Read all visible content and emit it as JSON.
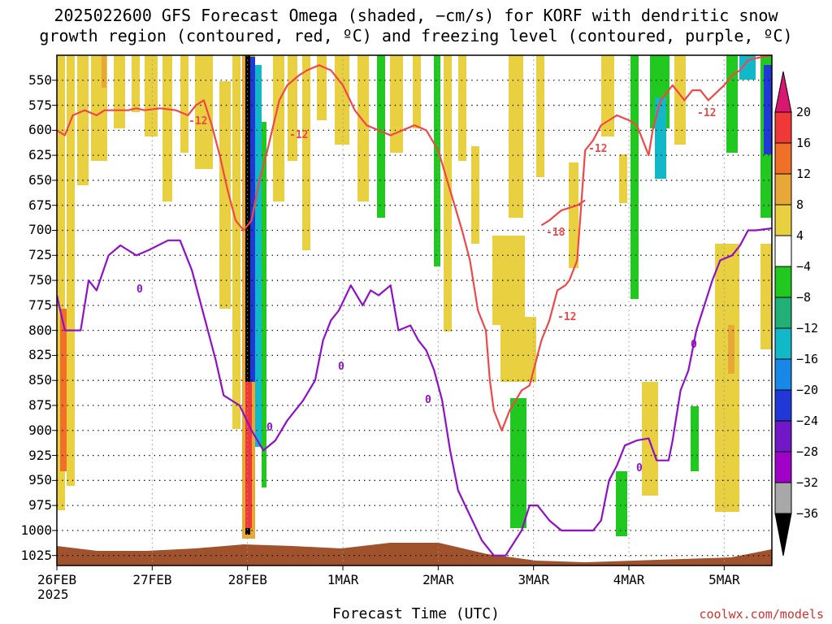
{
  "title_line1": "2025022600 GFS Forecast Omega (shaded, −cm/s) for KORF with dendritic snow",
  "title_line2": "growth region (contoured, red, ºC) and freezing level (contoured, purple, ºC)",
  "x_axis_title": "Forecast Time (UTC)",
  "credit": "coolwx.com/models",
  "chart_data": {
    "type": "heatmap",
    "y_axis": {
      "unit": "hPa",
      "ticks": [
        550,
        575,
        600,
        625,
        650,
        675,
        700,
        725,
        750,
        775,
        800,
        825,
        850,
        875,
        900,
        925,
        950,
        975,
        1000,
        1025
      ],
      "range": [
        525,
        1035
      ],
      "inverted": true
    },
    "x_axis": {
      "ticks": [
        {
          "label": "26FEB",
          "sub": "2025",
          "hours": 0
        },
        {
          "label": "27FEB",
          "hours": 24
        },
        {
          "label": "28FEB",
          "hours": 48
        },
        {
          "label": "1MAR",
          "hours": 72
        },
        {
          "label": "2MAR",
          "hours": 96
        },
        {
          "label": "3MAR",
          "hours": 120
        },
        {
          "label": "4MAR",
          "hours": 144
        },
        {
          "label": "5MAR",
          "hours": 168
        }
      ],
      "range_hours": [
        0,
        180
      ]
    },
    "grid": "dotted",
    "colorbar": {
      "labels": [
        "20",
        "16",
        "12",
        "8",
        "4",
        "−4",
        "−8",
        "−12",
        "−16",
        "−20",
        "−24",
        "−28",
        "−32",
        "−36"
      ],
      "colors": [
        "#d81870",
        "#f03838",
        "#f07028",
        "#e8a838",
        "#e8d040",
        "#ffffff",
        "#20c820",
        "#20b078",
        "#10b8c8",
        "#1888e8",
        "#2038d8",
        "#7018c8",
        "#a000c8",
        "#a8a8a8",
        "#000000"
      ]
    },
    "contour_labels": {
      "dgz_red": [
        "-12",
        "-12",
        "-12",
        "-18",
        "-12",
        "-12"
      ],
      "freezing_purple": [
        "0",
        "0",
        "0",
        "0",
        "0",
        "0"
      ]
    },
    "freezing_level": {
      "name": "0",
      "color": "#9010c8",
      "points": [
        [
          0,
          765
        ],
        [
          2,
          800
        ],
        [
          3.5,
          800
        ],
        [
          6,
          800
        ],
        [
          8,
          750
        ],
        [
          10,
          760
        ],
        [
          13,
          725
        ],
        [
          16,
          715
        ],
        [
          20,
          725
        ],
        [
          23,
          720
        ],
        [
          28,
          710
        ],
        [
          31,
          710
        ],
        [
          34,
          740
        ],
        [
          38,
          800
        ],
        [
          40,
          830
        ],
        [
          42,
          865
        ],
        [
          44,
          870
        ],
        [
          46,
          875
        ],
        [
          49,
          900
        ],
        [
          52,
          920
        ],
        [
          55,
          910
        ],
        [
          58,
          890
        ],
        [
          62,
          870
        ],
        [
          65,
          850
        ],
        [
          67,
          810
        ],
        [
          69,
          790
        ],
        [
          71,
          780
        ],
        [
          74,
          755
        ],
        [
          77,
          775
        ],
        [
          79,
          760
        ],
        [
          81,
          765
        ],
        [
          84,
          755
        ],
        [
          86,
          800
        ],
        [
          89,
          795
        ],
        [
          91,
          810
        ],
        [
          93,
          820
        ],
        [
          95,
          840
        ],
        [
          97,
          870
        ],
        [
          99,
          920
        ],
        [
          101,
          960
        ],
        [
          104,
          985
        ],
        [
          107,
          1010
        ],
        [
          110,
          1025
        ],
        [
          113,
          1025
        ],
        [
          117,
          1000
        ],
        [
          119,
          975
        ],
        [
          121,
          975
        ],
        [
          124,
          990
        ],
        [
          127,
          1000
        ],
        [
          131,
          1000
        ],
        [
          135,
          1000
        ],
        [
          137,
          990
        ],
        [
          139,
          950
        ],
        [
          141,
          935
        ],
        [
          143,
          915
        ],
        [
          146,
          910
        ],
        [
          149,
          908
        ],
        [
          151,
          930
        ],
        [
          154,
          930
        ],
        [
          155,
          910
        ],
        [
          157,
          860
        ],
        [
          159,
          840
        ],
        [
          161,
          800
        ],
        [
          163,
          775
        ],
        [
          165,
          750
        ],
        [
          167,
          730
        ],
        [
          170,
          725
        ],
        [
          172,
          715
        ],
        [
          174,
          700
        ],
        [
          176,
          700
        ],
        [
          180,
          698
        ]
      ]
    },
    "dgz_lines": [
      {
        "color": "#f04848",
        "points": [
          [
            0,
            600
          ],
          [
            2,
            605
          ],
          [
            4,
            585
          ],
          [
            7,
            580
          ],
          [
            10,
            585
          ],
          [
            12,
            580
          ],
          [
            15,
            580
          ],
          [
            18,
            580
          ],
          [
            20,
            578
          ],
          [
            22,
            580
          ],
          [
            26,
            578
          ],
          [
            30,
            580
          ],
          [
            33,
            585
          ],
          [
            35,
            575
          ],
          [
            37,
            570
          ],
          [
            39,
            595
          ],
          [
            41,
            625
          ],
          [
            43,
            660
          ],
          [
            45,
            690
          ],
          [
            47,
            700
          ],
          [
            49,
            690
          ],
          [
            51,
            650
          ],
          [
            53,
            620
          ],
          [
            56,
            570
          ],
          [
            58,
            555
          ],
          [
            61,
            545
          ],
          [
            63,
            540
          ],
          [
            66,
            535
          ],
          [
            69,
            540
          ],
          [
            72,
            555
          ],
          [
            75,
            580
          ],
          [
            78,
            595
          ],
          [
            81,
            600
          ],
          [
            84,
            605
          ],
          [
            87,
            600
          ],
          [
            90,
            595
          ],
          [
            93,
            600
          ],
          [
            96,
            620
          ],
          [
            99,
            660
          ],
          [
            102,
            700
          ],
          [
            104,
            730
          ],
          [
            106,
            780
          ],
          [
            108,
            800
          ],
          [
            109,
            850
          ],
          [
            110,
            880
          ],
          [
            112,
            900
          ],
          [
            114,
            880
          ],
          [
            117,
            860
          ],
          [
            119,
            855
          ],
          [
            120,
            840
          ],
          [
            122,
            810
          ],
          [
            124,
            790
          ],
          [
            126,
            760
          ],
          [
            128,
            755
          ],
          [
            129,
            750
          ],
          [
            131,
            730
          ],
          [
            133,
            620
          ],
          [
            135,
            610
          ],
          [
            137,
            595
          ],
          [
            139,
            590
          ],
          [
            141,
            585
          ],
          [
            144,
            590
          ],
          [
            146,
            595
          ],
          [
            149,
            625
          ],
          [
            150,
            600
          ],
          [
            152,
            570
          ],
          [
            155,
            555
          ],
          [
            158,
            570
          ],
          [
            160,
            560
          ],
          [
            162,
            560
          ],
          [
            164,
            570
          ],
          [
            168,
            555
          ],
          [
            170,
            545
          ],
          [
            172,
            540
          ],
          [
            174,
            530
          ],
          [
            176,
            528
          ],
          [
            180,
            525
          ]
        ]
      },
      {
        "color": "#f04848",
        "points": [
          [
            122,
            695
          ],
          [
            124,
            690
          ],
          [
            127,
            680
          ],
          [
            131,
            675
          ],
          [
            133,
            670
          ]
        ]
      }
    ]
  }
}
